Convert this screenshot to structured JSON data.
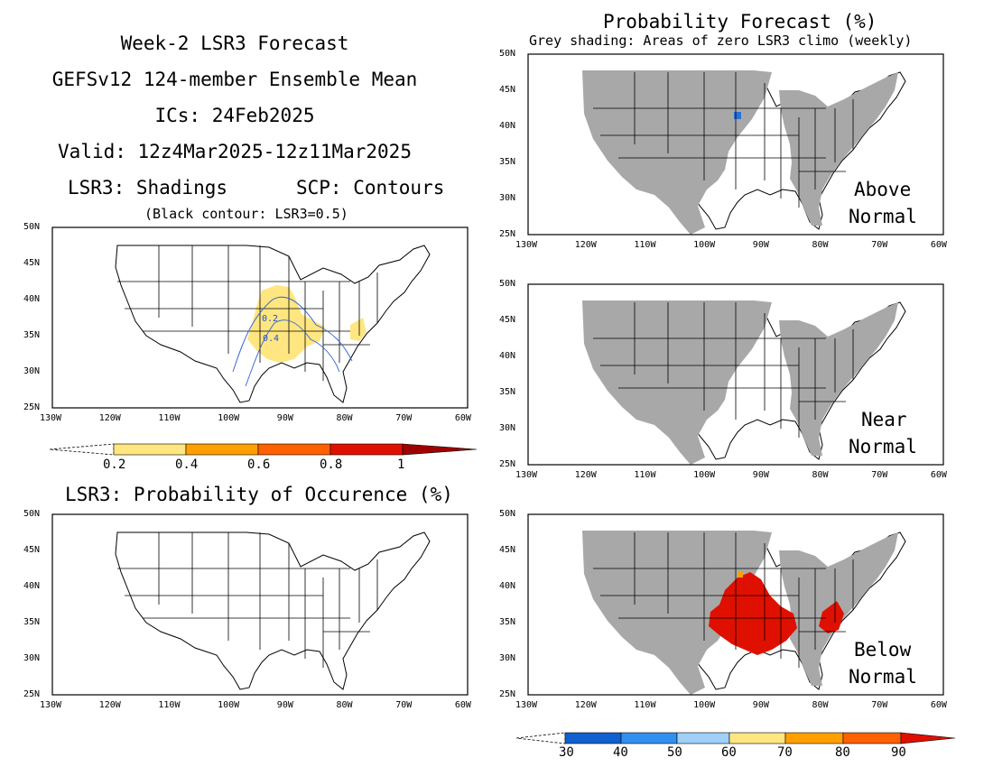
{
  "left_titles": {
    "line1": "Week-2 LSR3 Forecast",
    "line2": "GEFSv12 124-member Ensemble Mean",
    "line3": "ICs: 24Feb2025",
    "line4": "Valid: 12z4Mar2025-12z11Mar2025",
    "line5_left": "LSR3: Shadings",
    "line5_right": "SCP: Contours",
    "line6": "(Black contour: LSR3=0.5)"
  },
  "bottom_left_title": "LSR3: Probability of Occurence (%)",
  "right_title": "Probability Forecast (%)",
  "right_subtitle": "Grey shading: Areas of zero LSR3 climo (weekly)",
  "panel_labels": {
    "above": [
      "Above",
      "Normal"
    ],
    "near": [
      "Near",
      "Normal"
    ],
    "below": [
      "Below",
      "Normal"
    ]
  },
  "axes": {
    "lat_ticks": [
      "50N",
      "45N",
      "40N",
      "35N",
      "30N",
      "25N"
    ],
    "lon_ticks": [
      "130W",
      "120W",
      "110W",
      "100W",
      "90W",
      "80W",
      "70W",
      "60W"
    ]
  },
  "contour_labels": [
    "0.2",
    "0.4"
  ],
  "lsr_colorbar": {
    "colors": [
      "#ffe680",
      "#ffa000",
      "#ff6000",
      "#e01000",
      "#a00000"
    ],
    "labels": [
      "0.2",
      "0.4",
      "0.6",
      "0.8",
      "1"
    ]
  },
  "prob_colorbar": {
    "colors": [
      "#1060d0",
      "#3090f0",
      "#a0d0f8",
      "#ffe680",
      "#ffa000",
      "#ff6000",
      "#e01000"
    ],
    "labels": [
      "30",
      "40",
      "50",
      "60",
      "70",
      "80",
      "90"
    ]
  },
  "map_colors": {
    "grey": "#a8a8a8",
    "yellow": "#ffe680",
    "red": "#e01000",
    "blue": "#2c70d8",
    "orange": "#ffa000"
  }
}
